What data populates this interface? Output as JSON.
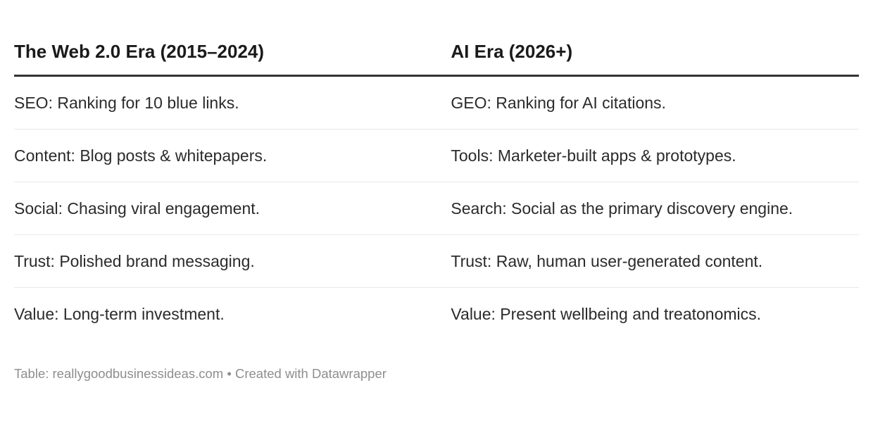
{
  "colors": {
    "background": "#ffffff",
    "header_text": "#1a1a1a",
    "body_text": "#2b2b2b",
    "header_rule": "#333333",
    "row_divider": "#e8e8e8",
    "footer_text": "#8e8e8e"
  },
  "chart_data": {
    "type": "table",
    "columns": [
      "The Web 2.0 Era (2015–2024)",
      "AI Era (2026+)"
    ],
    "rows": [
      [
        "SEO: Ranking for 10 blue links.",
        "GEO: Ranking for AI citations."
      ],
      [
        "Content: Blog posts & whitepapers.",
        "Tools: Marketer-built apps & prototypes."
      ],
      [
        "Social: Chasing viral engagement.",
        "Search: Social as the primary discovery engine."
      ],
      [
        "Trust: Polished brand messaging.",
        "Trust: Raw, human user-generated content."
      ],
      [
        "Value: Long-term investment.",
        "Value: Present wellbeing and treatonomics."
      ]
    ],
    "source": "reallygoodbusinessideas.com",
    "credit": "Created with Datawrapper",
    "layout_hints": {
      "header_rule": "thick dark line under column headers",
      "row_dividers": "thin light gray lines between rows",
      "cell_vertical_align": "middle"
    }
  },
  "footer": {
    "prefix": "Table:",
    "source": "reallygoodbusinessideas.com",
    "separator": "•",
    "credit": "Created with Datawrapper"
  }
}
